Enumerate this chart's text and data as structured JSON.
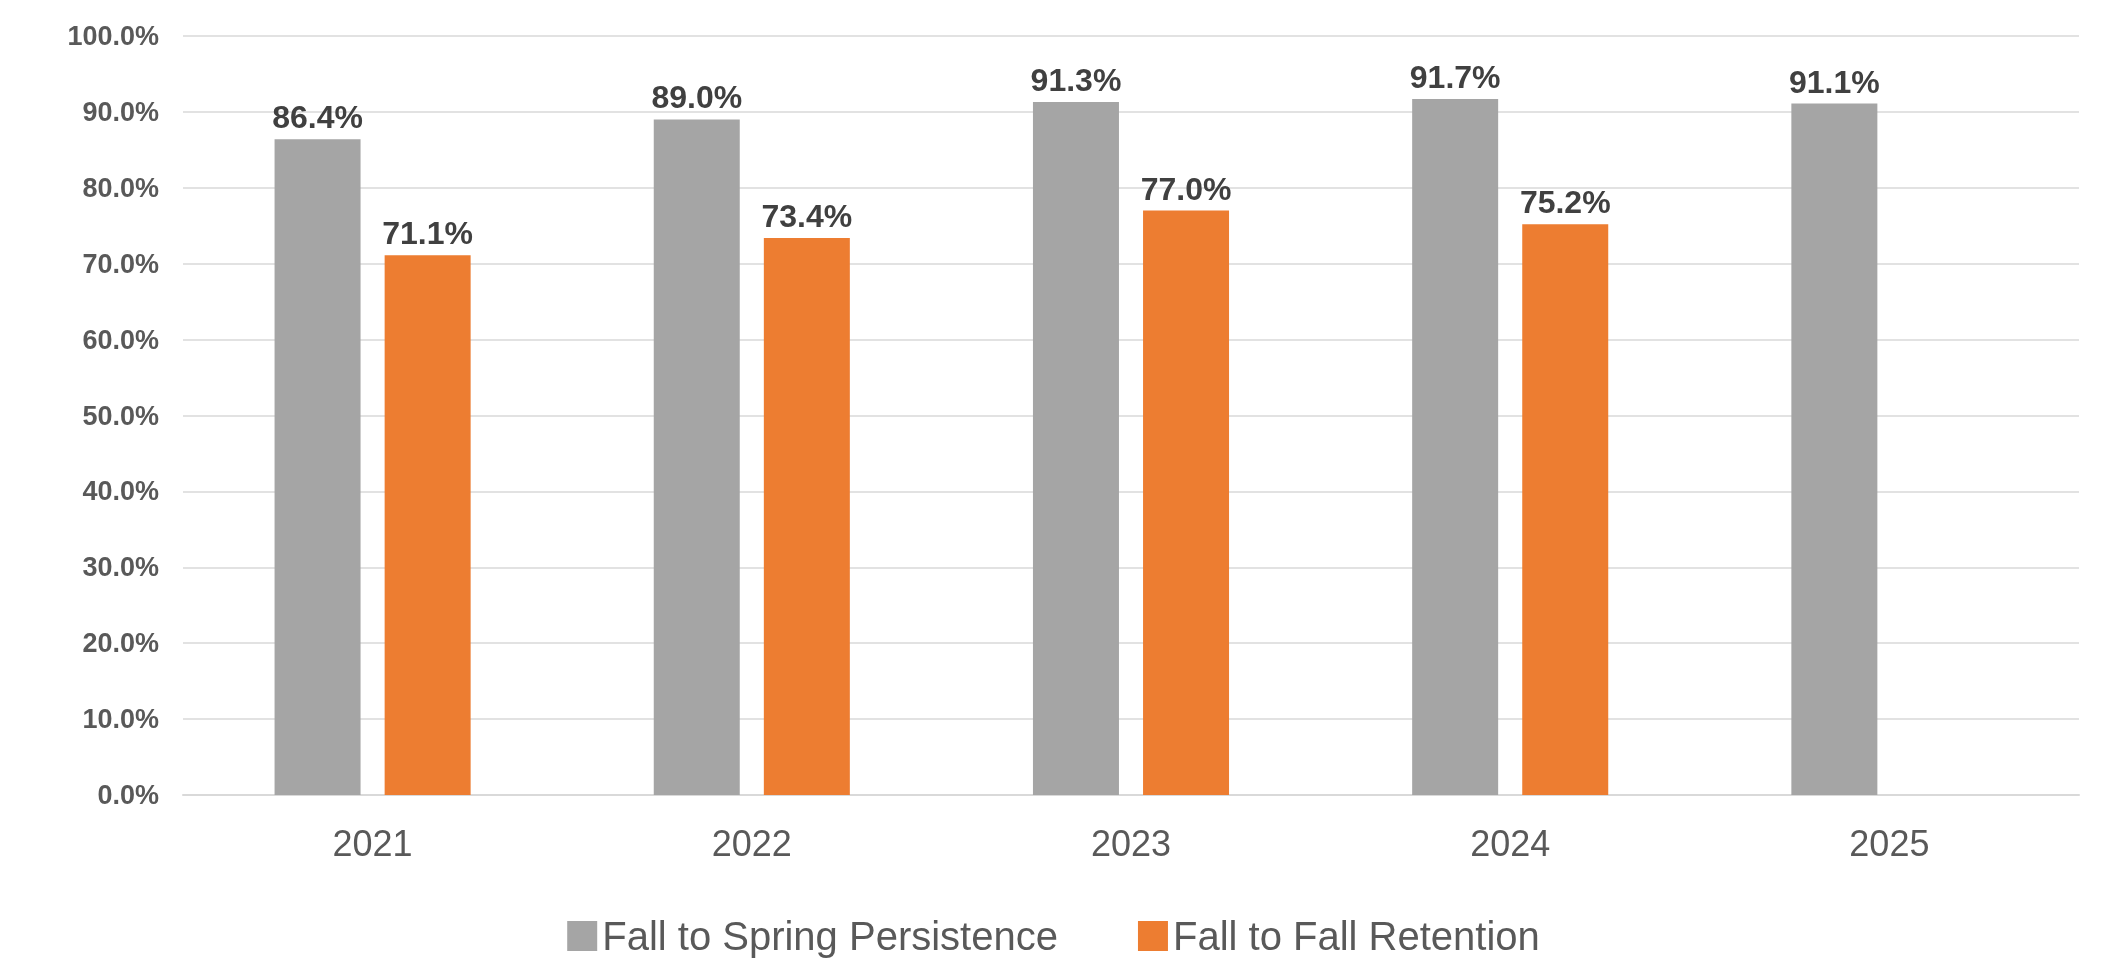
{
  "chart_data": {
    "type": "bar",
    "categories": [
      "2021",
      "2022",
      "2023",
      "2024",
      "2025"
    ],
    "series": [
      {
        "name": "Fall to Spring Persistence",
        "color": "#a5a5a5",
        "values": [
          86.4,
          89.0,
          91.3,
          91.7,
          91.1
        ],
        "value_labels": [
          "86.4%",
          "89.0%",
          "91.3%",
          "91.7%",
          "91.1%"
        ]
      },
      {
        "name": "Fall to Fall Retention",
        "color": "#ed7d31",
        "values": [
          71.1,
          73.4,
          77.0,
          75.2,
          null
        ],
        "value_labels": [
          "71.1%",
          "73.4%",
          "77.0%",
          "75.2%",
          null
        ]
      }
    ],
    "ylim": [
      0,
      100
    ],
    "yticks": [
      {
        "value": 0,
        "label": "0.0%"
      },
      {
        "value": 10,
        "label": "10.0%"
      },
      {
        "value": 20,
        "label": "20.0%"
      },
      {
        "value": 30,
        "label": "30.0%"
      },
      {
        "value": 40,
        "label": "40.0%"
      },
      {
        "value": 50,
        "label": "50.0%"
      },
      {
        "value": 60,
        "label": "60.0%"
      },
      {
        "value": 70,
        "label": "70.0%"
      },
      {
        "value": 80,
        "label": "80.0%"
      },
      {
        "value": 90,
        "label": "90.0%"
      },
      {
        "value": 100,
        "label": "100.0%"
      }
    ],
    "grid": "y",
    "legend": "bottom"
  }
}
